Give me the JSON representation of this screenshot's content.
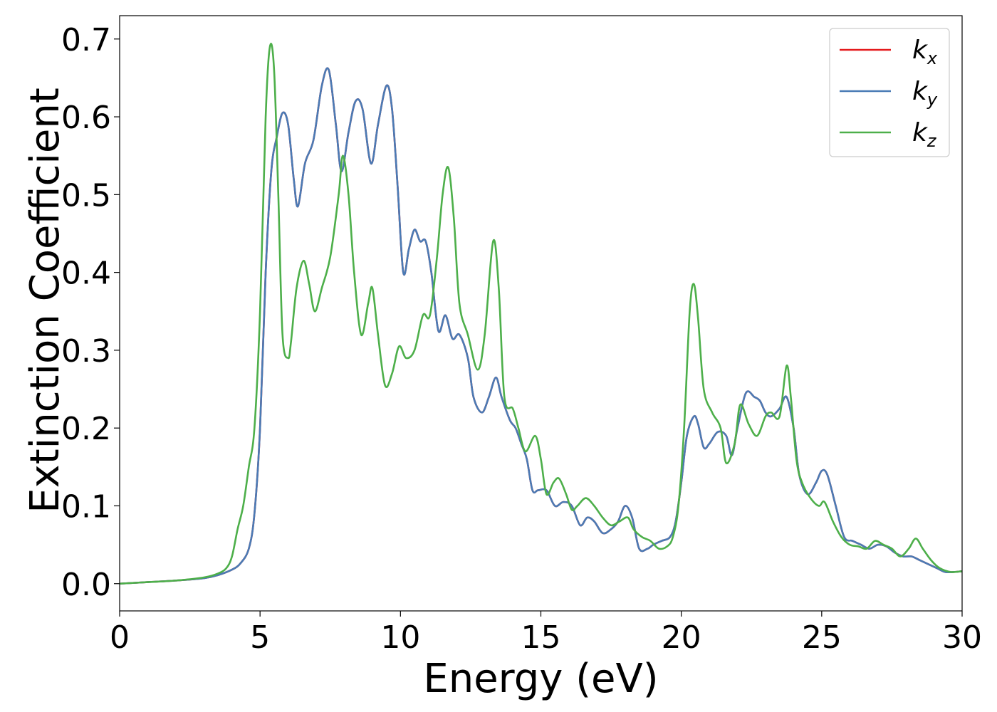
{
  "chart_data": {
    "type": "line",
    "xlabel": "Energy (eV)",
    "ylabel": "Extinction Coefficient",
    "xlim": [
      0,
      30
    ],
    "ylim": [
      -0.035,
      0.73
    ],
    "xticks": [
      0,
      5,
      10,
      15,
      20,
      25,
      30
    ],
    "xtick_labels": [
      "0",
      "5",
      "10",
      "15",
      "20",
      "25",
      "30"
    ],
    "yticks": [
      0.0,
      0.1,
      0.2,
      0.3,
      0.4,
      0.5,
      0.6,
      0.7
    ],
    "ytick_labels": [
      "0.0",
      "0.1",
      "0.2",
      "0.3",
      "0.4",
      "0.5",
      "0.6",
      "0.7"
    ],
    "grid": false,
    "legend_position": "top-right",
    "series": [
      {
        "name": "k_x",
        "label_main": "k",
        "label_sub": "x",
        "color": "#e41a1c",
        "x": [
          0,
          1,
          2,
          3,
          3.5,
          4,
          4.3,
          4.6,
          4.8,
          5.0,
          5.2,
          5.4,
          5.6,
          5.8,
          6.0,
          6.2,
          6.35,
          6.6,
          6.9,
          7.2,
          7.45,
          7.7,
          7.9,
          8.15,
          8.4,
          8.65,
          8.95,
          9.2,
          9.5,
          9.7,
          9.9,
          10.1,
          10.3,
          10.5,
          10.7,
          10.9,
          11.1,
          11.35,
          11.6,
          11.85,
          12.1,
          12.4,
          12.6,
          12.9,
          13.15,
          13.4,
          13.6,
          13.9,
          14.1,
          14.3,
          14.5,
          14.7,
          14.9,
          15.2,
          15.5,
          15.8,
          16.1,
          16.4,
          16.65,
          16.9,
          17.2,
          17.5,
          17.75,
          18.0,
          18.25,
          18.5,
          18.8,
          19.0,
          19.3,
          19.6,
          19.8,
          20.0,
          20.2,
          20.45,
          20.6,
          20.8,
          21.0,
          21.3,
          21.6,
          21.8,
          22.0,
          22.3,
          22.6,
          22.8,
          23.0,
          23.2,
          23.5,
          23.75,
          24.0,
          24.2,
          24.5,
          24.8,
          25.0,
          25.2,
          25.5,
          25.8,
          26.1,
          26.4,
          26.7,
          27.0,
          27.3,
          27.6,
          27.9,
          28.2,
          28.5,
          28.8,
          29.1,
          29.4,
          29.7,
          30
        ],
        "y": [
          0,
          0.002,
          0.004,
          0.007,
          0.011,
          0.018,
          0.026,
          0.045,
          0.09,
          0.2,
          0.4,
          0.53,
          0.575,
          0.605,
          0.59,
          0.52,
          0.485,
          0.54,
          0.57,
          0.64,
          0.66,
          0.59,
          0.53,
          0.58,
          0.62,
          0.61,
          0.54,
          0.59,
          0.64,
          0.61,
          0.51,
          0.4,
          0.43,
          0.455,
          0.44,
          0.44,
          0.4,
          0.325,
          0.345,
          0.315,
          0.32,
          0.29,
          0.24,
          0.22,
          0.24,
          0.265,
          0.24,
          0.21,
          0.2,
          0.18,
          0.16,
          0.12,
          0.12,
          0.12,
          0.1,
          0.105,
          0.1,
          0.075,
          0.085,
          0.08,
          0.065,
          0.07,
          0.08,
          0.1,
          0.085,
          0.045,
          0.045,
          0.05,
          0.055,
          0.06,
          0.08,
          0.13,
          0.19,
          0.215,
          0.205,
          0.175,
          0.18,
          0.195,
          0.19,
          0.165,
          0.2,
          0.245,
          0.24,
          0.235,
          0.22,
          0.215,
          0.225,
          0.24,
          0.2,
          0.14,
          0.115,
          0.13,
          0.145,
          0.14,
          0.1,
          0.06,
          0.055,
          0.05,
          0.045,
          0.05,
          0.048,
          0.04,
          0.035,
          0.035,
          0.03,
          0.025,
          0.02,
          0.015,
          0.015,
          0.016
        ]
      },
      {
        "name": "k_y",
        "label_main": "k",
        "label_sub": "y",
        "color": "#4a7bb5",
        "x": [
          0,
          1,
          2,
          3,
          3.5,
          4,
          4.3,
          4.6,
          4.8,
          5.0,
          5.2,
          5.4,
          5.6,
          5.8,
          6.0,
          6.2,
          6.35,
          6.6,
          6.9,
          7.2,
          7.45,
          7.7,
          7.9,
          8.15,
          8.4,
          8.65,
          8.95,
          9.2,
          9.5,
          9.7,
          9.9,
          10.1,
          10.3,
          10.5,
          10.7,
          10.9,
          11.1,
          11.35,
          11.6,
          11.85,
          12.1,
          12.4,
          12.6,
          12.9,
          13.15,
          13.4,
          13.6,
          13.9,
          14.1,
          14.3,
          14.5,
          14.7,
          14.9,
          15.2,
          15.5,
          15.8,
          16.1,
          16.4,
          16.65,
          16.9,
          17.2,
          17.5,
          17.75,
          18.0,
          18.25,
          18.5,
          18.8,
          19.0,
          19.3,
          19.6,
          19.8,
          20.0,
          20.2,
          20.45,
          20.6,
          20.8,
          21.0,
          21.3,
          21.6,
          21.8,
          22.0,
          22.3,
          22.6,
          22.8,
          23.0,
          23.2,
          23.5,
          23.75,
          24.0,
          24.2,
          24.5,
          24.8,
          25.0,
          25.2,
          25.5,
          25.8,
          26.1,
          26.4,
          26.7,
          27.0,
          27.3,
          27.6,
          27.9,
          28.2,
          28.5,
          28.8,
          29.1,
          29.4,
          29.7,
          30
        ],
        "y": [
          0,
          0.002,
          0.004,
          0.007,
          0.011,
          0.018,
          0.026,
          0.045,
          0.09,
          0.2,
          0.4,
          0.53,
          0.575,
          0.605,
          0.59,
          0.52,
          0.485,
          0.54,
          0.57,
          0.64,
          0.66,
          0.59,
          0.53,
          0.58,
          0.62,
          0.61,
          0.54,
          0.59,
          0.64,
          0.61,
          0.51,
          0.4,
          0.43,
          0.455,
          0.44,
          0.44,
          0.4,
          0.325,
          0.345,
          0.315,
          0.32,
          0.29,
          0.24,
          0.22,
          0.24,
          0.265,
          0.24,
          0.21,
          0.2,
          0.18,
          0.16,
          0.12,
          0.12,
          0.12,
          0.1,
          0.105,
          0.1,
          0.075,
          0.085,
          0.08,
          0.065,
          0.07,
          0.08,
          0.1,
          0.085,
          0.045,
          0.045,
          0.05,
          0.055,
          0.06,
          0.08,
          0.13,
          0.19,
          0.215,
          0.205,
          0.175,
          0.18,
          0.195,
          0.19,
          0.165,
          0.2,
          0.245,
          0.24,
          0.235,
          0.22,
          0.215,
          0.225,
          0.24,
          0.2,
          0.14,
          0.115,
          0.13,
          0.145,
          0.14,
          0.1,
          0.06,
          0.055,
          0.05,
          0.045,
          0.05,
          0.048,
          0.04,
          0.035,
          0.035,
          0.03,
          0.025,
          0.02,
          0.015,
          0.015,
          0.016
        ]
      },
      {
        "name": "k_z",
        "label_main": "k",
        "label_sub": "z",
        "color": "#4daf4a",
        "x": [
          0,
          1,
          2,
          3,
          3.5,
          3.8,
          4.0,
          4.2,
          4.4,
          4.6,
          4.8,
          5.0,
          5.2,
          5.35,
          5.5,
          5.65,
          5.8,
          6.0,
          6.1,
          6.3,
          6.55,
          6.75,
          6.95,
          7.2,
          7.5,
          7.8,
          7.95,
          8.15,
          8.35,
          8.6,
          8.85,
          9.0,
          9.2,
          9.45,
          9.7,
          9.95,
          10.2,
          10.5,
          10.8,
          11.05,
          11.3,
          11.5,
          11.7,
          11.9,
          12.1,
          12.4,
          12.75,
          13.0,
          13.3,
          13.5,
          13.7,
          14.0,
          14.2,
          14.45,
          14.8,
          15.0,
          15.2,
          15.45,
          15.65,
          15.9,
          16.1,
          16.3,
          16.6,
          16.9,
          17.2,
          17.5,
          17.8,
          18.1,
          18.3,
          18.6,
          18.9,
          19.2,
          19.5,
          19.7,
          19.9,
          20.1,
          20.3,
          20.45,
          20.6,
          20.8,
          21.1,
          21.4,
          21.6,
          21.9,
          22.1,
          22.4,
          22.7,
          23.0,
          23.2,
          23.5,
          23.75,
          23.9,
          24.1,
          24.3,
          24.6,
          24.9,
          25.1,
          25.4,
          25.7,
          26.0,
          26.3,
          26.6,
          26.9,
          27.2,
          27.5,
          27.8,
          28.1,
          28.35,
          28.6,
          28.9,
          29.2,
          29.6,
          30
        ],
        "y": [
          0,
          0.002,
          0.004,
          0.008,
          0.013,
          0.02,
          0.035,
          0.07,
          0.1,
          0.15,
          0.2,
          0.35,
          0.6,
          0.69,
          0.66,
          0.5,
          0.32,
          0.29,
          0.31,
          0.38,
          0.415,
          0.385,
          0.35,
          0.38,
          0.42,
          0.5,
          0.55,
          0.5,
          0.4,
          0.32,
          0.36,
          0.38,
          0.32,
          0.255,
          0.27,
          0.305,
          0.29,
          0.3,
          0.345,
          0.345,
          0.42,
          0.5,
          0.535,
          0.47,
          0.36,
          0.32,
          0.275,
          0.32,
          0.44,
          0.38,
          0.24,
          0.225,
          0.2,
          0.17,
          0.19,
          0.16,
          0.115,
          0.13,
          0.135,
          0.115,
          0.095,
          0.1,
          0.11,
          0.1,
          0.085,
          0.075,
          0.08,
          0.085,
          0.07,
          0.06,
          0.055,
          0.045,
          0.048,
          0.06,
          0.1,
          0.2,
          0.35,
          0.385,
          0.34,
          0.25,
          0.22,
          0.2,
          0.155,
          0.18,
          0.23,
          0.205,
          0.19,
          0.215,
          0.22,
          0.215,
          0.28,
          0.24,
          0.16,
          0.13,
          0.11,
          0.1,
          0.105,
          0.08,
          0.06,
          0.05,
          0.048,
          0.045,
          0.055,
          0.05,
          0.045,
          0.035,
          0.045,
          0.058,
          0.045,
          0.03,
          0.02,
          0.015,
          0.016
        ]
      }
    ]
  }
}
